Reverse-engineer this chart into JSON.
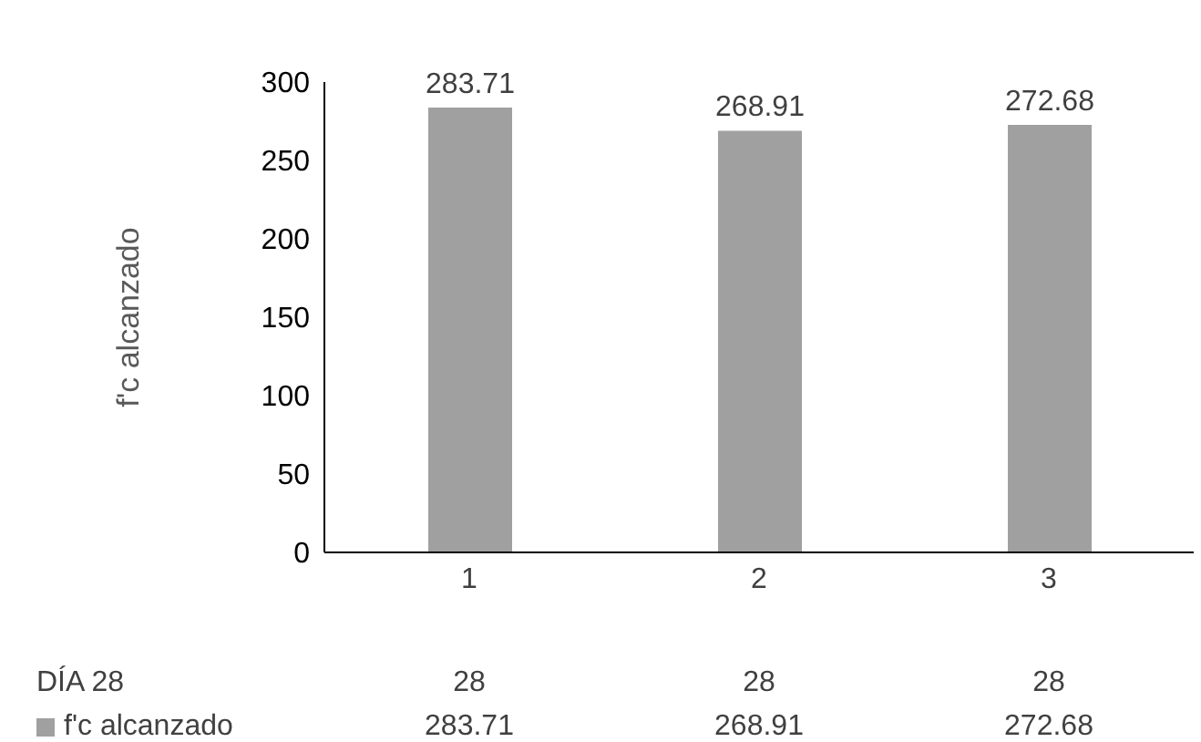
{
  "chart_data": {
    "type": "bar",
    "ylabel": "f'c alcanzado",
    "categories": [
      "1",
      "2",
      "3"
    ],
    "series": [
      {
        "name": "f'c alcanzado",
        "color": "#a0a0a0",
        "values": [
          283.71,
          268.91,
          272.68
        ],
        "value_labels": [
          "283.71",
          "268.91",
          "272.68"
        ]
      }
    ],
    "ylim": [
      0,
      300
    ],
    "yticks": [
      0,
      50,
      100,
      150,
      200,
      250,
      300
    ],
    "grid": false,
    "legend": "bottom",
    "annotations": [
      "DÍA 28",
      "28",
      "28",
      "28"
    ]
  }
}
